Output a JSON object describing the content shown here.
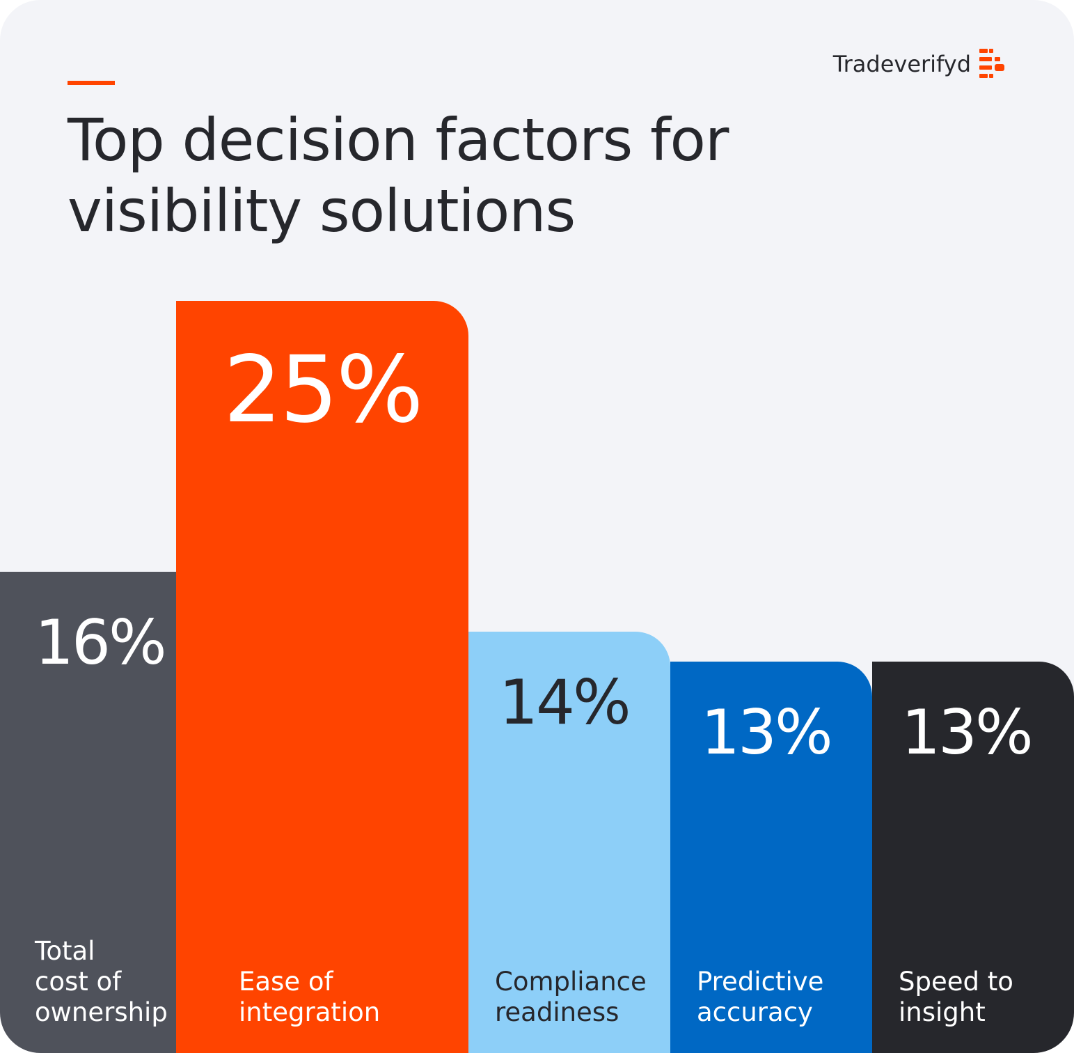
{
  "brand": {
    "name": "Tradeverifyd",
    "logo_icon": "tradeverifyd-logo-icon"
  },
  "colors": {
    "background": "#f3f4f8",
    "accent": "#ff4400",
    "text_dark": "#26272c"
  },
  "chart_data": {
    "type": "bar",
    "title": "Top decision factors for visibility solutions",
    "title_lines": [
      "Top decision factors for",
      "visibility solutions"
    ],
    "xlabel": "",
    "ylabel": "",
    "ylim": [
      0,
      25
    ],
    "grid": false,
    "legend": "none",
    "categories": [
      "Total\ncost of\nownership",
      "Ease of\nintegration",
      "Compliance\nreadiness",
      "Predictive\naccuracy",
      "Speed to\ninsight"
    ],
    "values": [
      16,
      25,
      14,
      13,
      13
    ],
    "value_labels": [
      "16%",
      "25%",
      "14%",
      "13%",
      "13%"
    ],
    "bar_colors": [
      "#4f525b",
      "#ff4400",
      "#8dcff8",
      "#0068c4",
      "#26272c"
    ],
    "label_colors": [
      "#ffffff",
      "#ffffff",
      "#26272c",
      "#ffffff",
      "#ffffff"
    ]
  }
}
